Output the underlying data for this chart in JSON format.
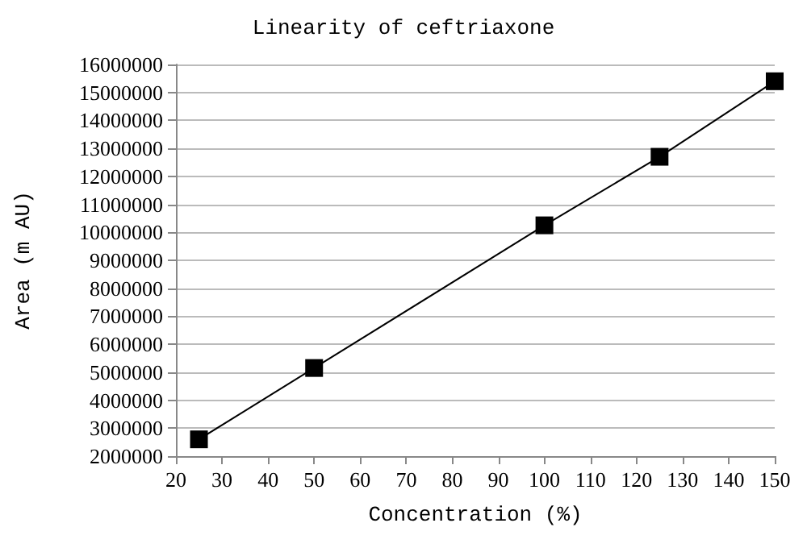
{
  "chart_data": {
    "type": "line",
    "title": "Linearity of ceftriaxone",
    "xlabel": "Concentration (%)",
    "ylabel": "Area (m AU)",
    "x": [
      25,
      50,
      100,
      125,
      150
    ],
    "series": [
      {
        "color": "#000000",
        "values": [
          2600000,
          5150000,
          10250000,
          12700000,
          15400000
        ]
      }
    ],
    "marker": "square",
    "line_style": "solid",
    "grid": "y",
    "xlim": [
      20,
      150
    ],
    "xticks": [
      20,
      30,
      40,
      50,
      60,
      70,
      80,
      90,
      100,
      110,
      120,
      130,
      140,
      150
    ],
    "ylim": [
      2000000,
      16000000
    ],
    "yticks": [
      2000000,
      3000000,
      4000000,
      5000000,
      6000000,
      7000000,
      8000000,
      9000000,
      10000000,
      11000000,
      12000000,
      13000000,
      14000000,
      15000000,
      16000000
    ]
  }
}
